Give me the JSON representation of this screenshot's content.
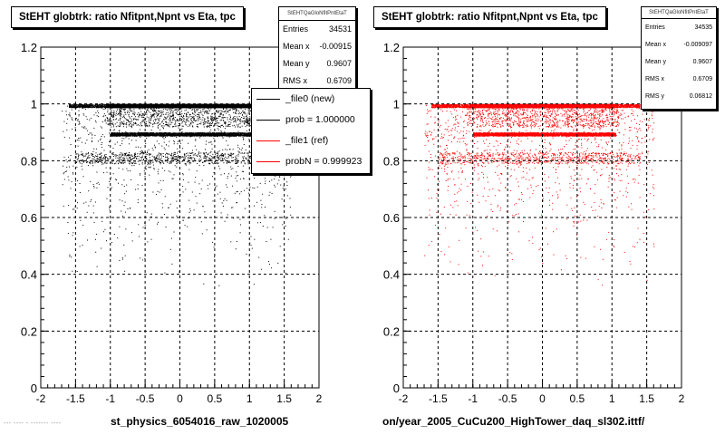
{
  "chart_data": [
    {
      "type": "scatter",
      "title": "StEHT globtrk: ratio Nfitpnt,Npnt vs Eta, tpc",
      "xlabel": "st_physics_6054016_raw_1020005",
      "ylabel": "",
      "xlim": [
        -2,
        2
      ],
      "ylim": [
        0,
        1.2
      ],
      "x_ticks": [
        "-2",
        "-1.5",
        "-1",
        "-0.5",
        "0",
        "0.5",
        "1",
        "1.5",
        "2"
      ],
      "y_ticks": [
        "0",
        "0.2",
        "0.4",
        "0.6",
        "0.8",
        "1",
        "1.2"
      ],
      "grid": true,
      "marker_color": "#000000",
      "stats_box": {
        "title": "StEHTQaGloNfitPntEtaT",
        "rows": [
          {
            "label": "Entries",
            "value": "34531"
          },
          {
            "label": "Mean x",
            "value": "-0.00915"
          },
          {
            "label": "Mean y",
            "value": "0.9607"
          },
          {
            "label": "RMS x",
            "value": "0.6709"
          }
        ]
      },
      "legend": {
        "placement": "right",
        "entries": [
          {
            "label": "_file0 (new)",
            "color": "#000000"
          },
          {
            "label": "prob = 1.000000",
            "color": "#000000"
          },
          {
            "label": "_file1 (ref)",
            "color": "#ff0000"
          },
          {
            "label": "probN = 0.999923",
            "color": "#ff0000"
          }
        ]
      },
      "distribution": {
        "bands": [
          {
            "y": 1.0,
            "x_range": [
              -1.6,
              1.4
            ],
            "weight": "dense"
          },
          {
            "y": 0.9,
            "x_range": [
              -1.0,
              1.05
            ],
            "weight": "dense"
          },
          {
            "y": 0.83,
            "x_range": [
              -1.5,
              1.4
            ],
            "weight": "medium"
          }
        ],
        "sparse_y_range": [
          0.3,
          1.0
        ],
        "sparse_x_range": [
          -1.7,
          1.6
        ]
      }
    },
    {
      "type": "scatter",
      "title": "StEHT globtrk: ratio Nfitpnt,Npnt vs Eta, tpc",
      "xlabel": "on/year_2005_CuCu200_HighTower_daq_sl302.ittf/",
      "ylabel": "",
      "xlim": [
        -2,
        2
      ],
      "ylim": [
        0,
        1.2
      ],
      "x_ticks": [
        "-2",
        "-1.5",
        "-1",
        "-0.5",
        "0",
        "0.5",
        "1",
        "1.5",
        "2"
      ],
      "y_ticks": [
        "0",
        "0.2",
        "0.4",
        "0.6",
        "0.8",
        "1",
        "1.2"
      ],
      "grid": true,
      "marker_color": "#ff0000",
      "stats_box": {
        "title": "StEHTQaGloNfitPntEtaT",
        "rows": [
          {
            "label": "Entries",
            "value": "34535"
          },
          {
            "label": "Mean x",
            "value": "-0.009097"
          },
          {
            "label": "Mean y",
            "value": "0.9607"
          },
          {
            "label": "RMS x",
            "value": "0.6709"
          },
          {
            "label": "RMS y",
            "value": "0.06812"
          }
        ]
      },
      "distribution": {
        "bands": [
          {
            "y": 1.0,
            "x_range": [
              -1.6,
              1.4
            ],
            "weight": "dense"
          },
          {
            "y": 0.9,
            "x_range": [
              -1.0,
              1.05
            ],
            "weight": "dense"
          },
          {
            "y": 0.83,
            "x_range": [
              -1.5,
              1.4
            ],
            "weight": "medium"
          }
        ],
        "sparse_y_range": [
          0.3,
          1.0
        ],
        "sparse_x_range": [
          -1.7,
          1.6
        ]
      }
    }
  ],
  "footer": {
    "corner_text": "--- ---- - ------- ----"
  }
}
